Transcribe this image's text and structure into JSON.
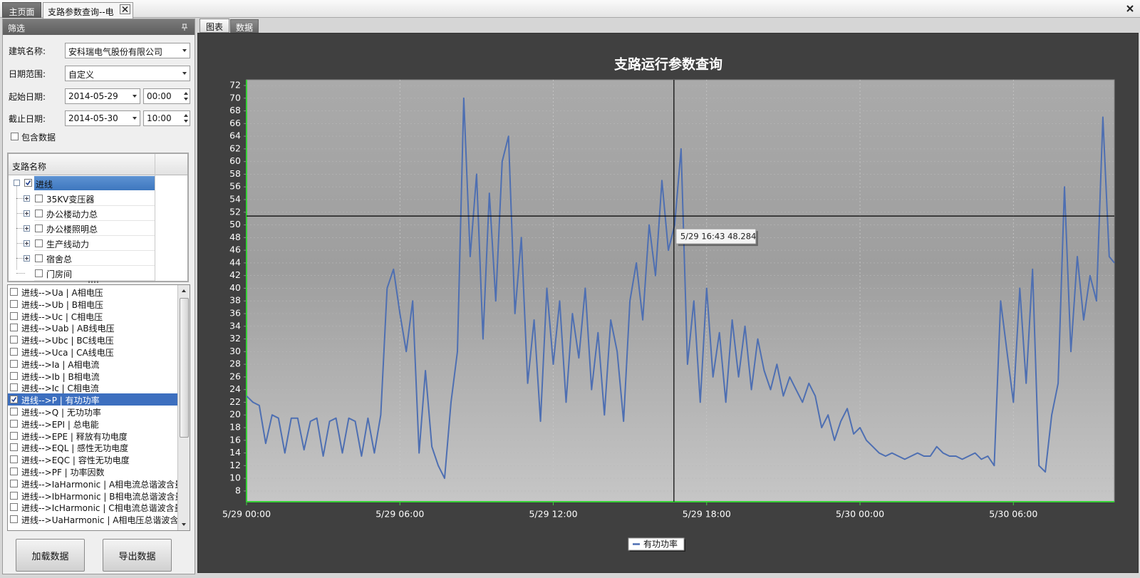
{
  "tabs": [
    {
      "label": "主页面"
    },
    {
      "label": "支路参数查询--电"
    }
  ],
  "filter": {
    "title": "筛选",
    "fields": [
      {
        "label": "建筑名称:",
        "value": "安科瑞电气股份有限公司"
      },
      {
        "label": "日期范围:",
        "value": "自定义"
      },
      {
        "label": "起始日期:",
        "value": "2014-05-29",
        "time": "00:00"
      },
      {
        "label": "截止日期:",
        "value": "2014-05-30",
        "time": "10:00"
      }
    ],
    "checkbox": {
      "label": "包含数据",
      "checked": false
    }
  },
  "tree": {
    "header": "支路名称",
    "root": {
      "label": "进线",
      "checked": true
    },
    "children": [
      {
        "label": "35KV变压器",
        "expandable": true
      },
      {
        "label": "办公楼动力总",
        "expandable": true
      },
      {
        "label": "办公楼照明总",
        "expandable": true
      },
      {
        "label": "生产线动力",
        "expandable": true
      },
      {
        "label": "宿舍总",
        "expandable": true
      },
      {
        "label": "门房间",
        "expandable": false
      }
    ]
  },
  "params": [
    {
      "label": "进线-->Ua | A相电压",
      "checked": false
    },
    {
      "label": "进线-->Ub | B相电压",
      "checked": false
    },
    {
      "label": "进线-->Uc | C相电压",
      "checked": false
    },
    {
      "label": "进线-->Uab | AB线电压",
      "checked": false
    },
    {
      "label": "进线-->Ubc | BC线电压",
      "checked": false
    },
    {
      "label": "进线-->Uca | CA线电压",
      "checked": false
    },
    {
      "label": "进线-->Ia | A相电流",
      "checked": false
    },
    {
      "label": "进线-->Ib | B相电流",
      "checked": false
    },
    {
      "label": "进线-->Ic | C相电流",
      "checked": false
    },
    {
      "label": "进线-->P | 有功功率",
      "checked": true
    },
    {
      "label": "进线-->Q | 无功功率",
      "checked": false
    },
    {
      "label": "进线-->EPI | 总电能",
      "checked": false
    },
    {
      "label": "进线-->EPE | 释放有功电度",
      "checked": false
    },
    {
      "label": "进线-->EQL | 感性无功电度",
      "checked": false
    },
    {
      "label": "进线-->EQC | 容性无功电度",
      "checked": false
    },
    {
      "label": "进线-->PF | 功率因数",
      "checked": false
    },
    {
      "label": "进线-->IaHarmonic | A相电流总谐波含量",
      "checked": false
    },
    {
      "label": "进线-->IbHarmonic | B相电流总谐波含量",
      "checked": false
    },
    {
      "label": "进线-->IcHarmonic | C相电流总谐波含量",
      "checked": false
    },
    {
      "label": "进线-->UaHarmonic | A相电压总谐波含量",
      "checked": false
    }
  ],
  "buttons": [
    "加载数据",
    "导出数据"
  ],
  "view_tabs": [
    "图表",
    "数据"
  ],
  "chart_data": {
    "type": "line",
    "title": "支路运行参数查询",
    "x": [
      0,
      0.25,
      0.5,
      0.75,
      1,
      1.25,
      1.5,
      1.75,
      2,
      2.25,
      2.5,
      2.75,
      3,
      3.25,
      3.5,
      3.75,
      4,
      4.25,
      4.5,
      4.75,
      5,
      5.25,
      5.5,
      5.75,
      6,
      6.25,
      6.5,
      6.75,
      7,
      7.25,
      7.5,
      7.75,
      8,
      8.25,
      8.5,
      8.75,
      9,
      9.25,
      9.5,
      9.75,
      10,
      10.25,
      10.5,
      10.75,
      11,
      11.25,
      11.5,
      11.75,
      12,
      12.25,
      12.5,
      12.75,
      13,
      13.25,
      13.5,
      13.75,
      14,
      14.25,
      14.5,
      14.75,
      15,
      15.25,
      15.5,
      15.75,
      16,
      16.25,
      16.5,
      16.75,
      17,
      17.25,
      17.5,
      17.75,
      18,
      18.25,
      18.5,
      18.75,
      19,
      19.25,
      19.5,
      19.75,
      20,
      20.25,
      20.5,
      20.75,
      21,
      21.25,
      21.5,
      21.75,
      22,
      22.25,
      22.5,
      22.75,
      23,
      23.25,
      23.5,
      23.75,
      24,
      24.25,
      24.5,
      24.75,
      25,
      25.25,
      25.5,
      25.75,
      26,
      26.25,
      26.5,
      26.75,
      27,
      27.25,
      27.5,
      27.75,
      28,
      28.25,
      28.5,
      28.75,
      29,
      29.25,
      29.5,
      29.75,
      30,
      30.25,
      30.5,
      30.75,
      31,
      31.25,
      31.5,
      31.75,
      32,
      32.25,
      32.5,
      32.75,
      33,
      33.25,
      33.5,
      33.75,
      33.95
    ],
    "series": [
      {
        "name": "有功功率",
        "color": "#4e6fb2",
        "values": [
          23,
          22,
          21.5,
          15.5,
          20,
          19.5,
          14,
          19.5,
          19.5,
          14.5,
          19,
          19.5,
          13.5,
          19,
          19.5,
          14,
          19.5,
          19,
          13.5,
          19.5,
          14,
          20,
          40,
          43,
          36,
          30,
          38,
          14,
          27,
          15,
          12,
          10,
          22,
          30,
          70,
          45,
          58,
          32,
          55,
          38,
          60,
          64,
          36,
          48,
          25,
          35,
          19,
          40,
          28,
          38,
          22,
          36,
          29,
          40,
          24,
          33,
          20,
          35,
          30,
          19,
          38,
          44,
          35,
          50,
          42,
          57,
          46,
          50,
          62,
          28,
          38,
          22,
          40,
          26,
          33,
          22,
          35,
          26,
          34,
          24,
          32,
          27,
          24,
          28,
          23,
          26,
          24,
          22,
          25,
          23,
          18,
          20,
          16,
          19,
          21,
          17,
          18,
          16,
          15,
          14,
          13.5,
          14,
          13.5,
          13,
          13.5,
          14,
          13.5,
          13.5,
          15,
          14,
          13.5,
          13.5,
          13,
          13.5,
          14,
          13,
          13.5,
          12,
          38,
          30,
          22,
          40,
          25,
          43,
          12,
          11,
          20,
          25,
          56,
          30,
          45,
          35,
          42,
          38,
          67,
          45,
          44
        ]
      }
    ],
    "xlim": [
      0,
      33.95
    ],
    "ylim": [
      6.3,
      72.9
    ],
    "xticks": [
      {
        "value": 0,
        "label": "5/29 00:00"
      },
      {
        "value": 6,
        "label": "5/29 06:00"
      },
      {
        "value": 12,
        "label": "5/29 12:00"
      },
      {
        "value": 18,
        "label": "5/29 18:00"
      },
      {
        "value": 24,
        "label": "5/30 00:00"
      },
      {
        "value": 30,
        "label": "5/30 06:00"
      }
    ],
    "yticks": [
      8,
      10,
      12,
      14,
      16,
      18,
      20,
      22,
      24,
      26,
      28,
      30,
      32,
      34,
      36,
      38,
      40,
      42,
      44,
      46,
      48,
      50,
      52,
      54,
      56,
      58,
      60,
      62,
      64,
      66,
      68,
      70,
      72
    ],
    "grid": true,
    "legend": "bottom",
    "crosshair": {
      "x": 16.72,
      "y": 51.4,
      "label": "5/29 16:43 48.284"
    }
  }
}
